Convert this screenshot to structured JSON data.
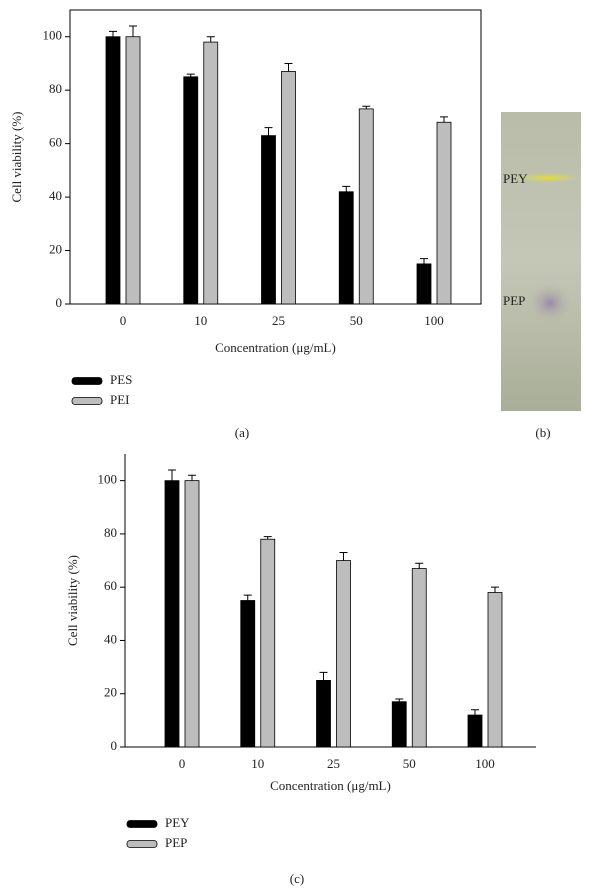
{
  "chart_data": [
    {
      "type": "bar",
      "ylabel": "Cell viability (%)",
      "xlabel": "Concentration (μg/mL)",
      "categories": [
        "0",
        "10",
        "25",
        "50",
        "100"
      ],
      "series": [
        {
          "name": "PES",
          "color": "#000000",
          "values": [
            100,
            85,
            63,
            42,
            15
          ],
          "errors": [
            2,
            1,
            3,
            2,
            2
          ]
        },
        {
          "name": "PEI",
          "color": "#bdbdbd",
          "values": [
            100,
            98,
            87,
            73,
            68
          ],
          "errors": [
            4,
            2,
            3,
            1,
            2
          ]
        }
      ],
      "ylim": [
        0,
        110
      ],
      "yticks": [
        0,
        20,
        40,
        60,
        80,
        100
      ],
      "frame": true,
      "panel": "(a)"
    },
    {
      "type": "bar",
      "ylabel": "Cell viability (%)",
      "xlabel": "Concentration (μg/mL)",
      "categories": [
        "0",
        "10",
        "25",
        "50",
        "100"
      ],
      "series": [
        {
          "name": "PEY",
          "color": "#000000",
          "values": [
            100,
            55,
            25,
            17,
            12
          ],
          "errors": [
            4,
            2,
            3,
            1,
            2
          ]
        },
        {
          "name": "PEP",
          "color": "#bdbdbd",
          "values": [
            100,
            78,
            70,
            67,
            58
          ],
          "errors": [
            2,
            1,
            3,
            2,
            2
          ]
        }
      ],
      "ylim": [
        0,
        110
      ],
      "yticks": [
        0,
        20,
        40,
        60,
        80,
        100
      ],
      "frame": false,
      "panel": "(c)"
    }
  ],
  "plate": {
    "labels": [
      "PEY",
      "PEP"
    ],
    "panel": "(b)"
  }
}
